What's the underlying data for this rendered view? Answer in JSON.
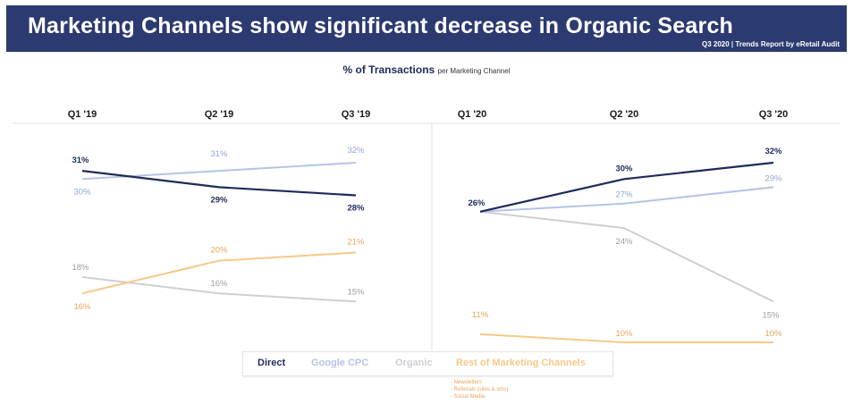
{
  "header": {
    "title": "Marketing Channels show significant decrease in Organic Search",
    "subtitle": "Q3 2020 | Trends Report by eRetail Audit"
  },
  "chart_title": {
    "main": "% of Transactions",
    "suffix": "per Marketing Channel"
  },
  "colors": {
    "banner": "#2b3a70",
    "Direct": "#1e2a5a",
    "Google CPC": "#b6c3e6",
    "Organic": "#cfcfd4",
    "Rest of Marketing Channels": "#f5c98a"
  },
  "legend": {
    "direct": "Direct",
    "google_cpc": "Google CPC",
    "organic": "Organic",
    "rest": "Rest of Marketing Channels"
  },
  "notes": [
    "- Newsletters",
    "- Referrals (sites & sms)",
    "- Social Media"
  ],
  "chart_data": [
    {
      "type": "line",
      "categories": [
        "Q1 '19",
        "Q2 '19",
        "Q3 '19"
      ],
      "series": [
        {
          "name": "Direct",
          "values": [
            31,
            29,
            28
          ]
        },
        {
          "name": "Google CPC",
          "values": [
            30,
            31,
            32
          ]
        },
        {
          "name": "Organic",
          "values": [
            18,
            16,
            15
          ]
        },
        {
          "name": "Rest of Marketing Channels",
          "values": [
            16,
            20,
            21
          ]
        }
      ]
    },
    {
      "type": "line",
      "categories": [
        "Q1 '20",
        "Q2 '20",
        "Q3 '20"
      ],
      "series": [
        {
          "name": "Direct",
          "values": [
            26,
            30,
            32
          ]
        },
        {
          "name": "Google CPC",
          "values": [
            26,
            27,
            29
          ]
        },
        {
          "name": "Organic",
          "values": [
            26,
            24,
            15
          ]
        },
        {
          "name": "Rest of Marketing Channels",
          "values": [
            11,
            10,
            10
          ]
        }
      ]
    }
  ]
}
